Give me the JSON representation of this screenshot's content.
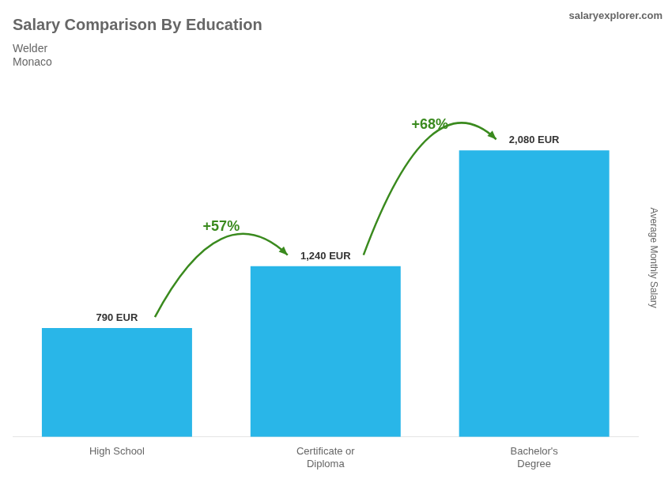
{
  "chart_data": {
    "type": "bar",
    "title": "Salary Comparison By Education",
    "subtitle": [
      "Welder",
      "Monaco"
    ],
    "watermark": "salaryexplorer.com",
    "ylabel": "Average Monthly Salary",
    "categories": [
      "High School",
      "Certificate or\nDiploma",
      "Bachelor's\nDegree"
    ],
    "values": [
      790,
      1240,
      2080
    ],
    "value_labels": [
      "790 EUR",
      "1,240 EUR",
      "2,080 EUR"
    ],
    "data_labels": true,
    "color": "#29B6E8",
    "ylim": [
      0,
      2600
    ],
    "grid": false,
    "tick_labels": "x",
    "annotations": [
      {
        "text": "+57%",
        "from": "High School",
        "to": "Certificate or\nDiploma"
      },
      {
        "text": "+68%",
        "from": "Certificate or\nDiploma",
        "to": "Bachelor's\nDegree"
      }
    ]
  }
}
